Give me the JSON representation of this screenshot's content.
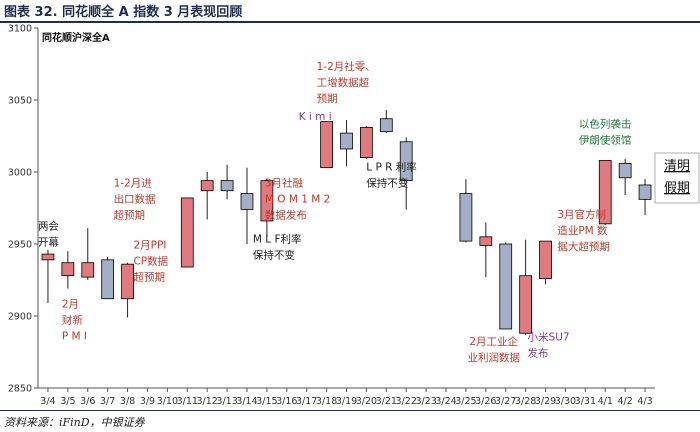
{
  "header": {
    "title": "图表 32. 同花顺全 A 指数 3 月表现回顾"
  },
  "footer": {
    "source": "资料来源：iFinD，中银证券"
  },
  "chart_data": {
    "type": "candlestick",
    "series_label": "同花顺沪深全A",
    "ylim": [
      2850,
      3100
    ],
    "yticks": [
      2850,
      2900,
      2950,
      3000,
      3050,
      3100
    ],
    "categories": [
      "3/4",
      "3/5",
      "3/6",
      "3/7",
      "3/8",
      "3/9",
      "3/10",
      "3/11",
      "3/12",
      "3/13",
      "3/14",
      "3/15",
      "3/16",
      "3/17",
      "3/18",
      "3/19",
      "3/20",
      "3/21",
      "3/22",
      "3/23",
      "3/24",
      "3/25",
      "3/26",
      "3/27",
      "3/28",
      "3/29",
      "3/30",
      "3/31",
      "4/1",
      "4/2",
      "4/3"
    ],
    "candles": [
      {
        "date": "3/4",
        "open": 2943,
        "close": 2939,
        "high": 2946,
        "low": 2909,
        "dir": "up"
      },
      {
        "date": "3/5",
        "open": 2928,
        "close": 2937,
        "high": 2945,
        "low": 2919,
        "dir": "up"
      },
      {
        "date": "3/6",
        "open": 2927,
        "close": 2937,
        "high": 2961,
        "low": 2925,
        "dir": "up"
      },
      {
        "date": "3/7",
        "open": 2912,
        "close": 2939,
        "high": 2941,
        "low": 2912,
        "dir": "down"
      },
      {
        "date": "3/8",
        "open": 2912,
        "close": 2936,
        "high": 2937,
        "low": 2899,
        "dir": "up"
      },
      {
        "date": "3/11",
        "open": 2934,
        "close": 2982,
        "high": 2982,
        "low": 2934,
        "dir": "up"
      },
      {
        "date": "3/12",
        "open": 2987,
        "close": 2994,
        "high": 3000,
        "low": 2967,
        "dir": "up"
      },
      {
        "date": "3/13",
        "open": 2987,
        "close": 2994,
        "high": 3005,
        "low": 2981,
        "dir": "down"
      },
      {
        "date": "3/14",
        "open": 2974,
        "close": 2985,
        "high": 3003,
        "low": 2950,
        "dir": "down"
      },
      {
        "date": "3/15",
        "open": 2966,
        "close": 2994,
        "high": 2995,
        "low": 2955,
        "dir": "up"
      },
      {
        "date": "3/18",
        "open": 3003,
        "close": 3035,
        "high": 3035,
        "low": 3003,
        "dir": "up"
      },
      {
        "date": "3/19",
        "open": 3016,
        "close": 3027,
        "high": 3036,
        "low": 3004,
        "dir": "down"
      },
      {
        "date": "3/20",
        "open": 3010,
        "close": 3031,
        "high": 3032,
        "low": 3009,
        "dir": "up"
      },
      {
        "date": "3/21",
        "open": 3028,
        "close": 3037,
        "high": 3043,
        "low": 3027,
        "dir": "down"
      },
      {
        "date": "3/22",
        "open": 2994,
        "close": 3021,
        "high": 3024,
        "low": 2974,
        "dir": "down"
      },
      {
        "date": "3/25",
        "open": 2952,
        "close": 2985,
        "high": 2995,
        "low": 2951,
        "dir": "down"
      },
      {
        "date": "3/26",
        "open": 2949,
        "close": 2955,
        "high": 2965,
        "low": 2927,
        "dir": "up"
      },
      {
        "date": "3/27",
        "open": 2891,
        "close": 2950,
        "high": 2951,
        "low": 2891,
        "dir": "down"
      },
      {
        "date": "3/28",
        "open": 2888,
        "close": 2928,
        "high": 2953,
        "low": 2887,
        "dir": "up"
      },
      {
        "date": "3/29",
        "open": 2926,
        "close": 2952,
        "high": 2952,
        "low": 2922,
        "dir": "up"
      },
      {
        "date": "4/1",
        "open": 2964,
        "close": 3008,
        "high": 3008,
        "low": 2963,
        "dir": "up"
      },
      {
        "date": "4/2",
        "open": 2996,
        "close": 3006,
        "high": 3009,
        "low": 2984,
        "dir": "down"
      },
      {
        "date": "4/3",
        "open": 2981,
        "close": 2991,
        "high": 2995,
        "low": 2970,
        "dir": "down"
      }
    ],
    "colors": {
      "up": "#e07a7e",
      "down": "#a4afc7",
      "border": "#000000"
    },
    "annotations": [
      {
        "lines": [
          "两会",
          "开幕"
        ],
        "color": "#222222",
        "date": "3/4",
        "y": 2960,
        "align": "start",
        "dx": -10
      },
      {
        "lines": [
          "2月",
          "财新",
          "P M I"
        ],
        "color": "#c0392b",
        "date": "3/5",
        "y": 2906,
        "align": "start",
        "dx": -6
      },
      {
        "lines": [
          "1-2月进",
          "出口数据",
          "超预期"
        ],
        "color": "#c0392b",
        "date": "3/8",
        "y": 2990,
        "align": "start",
        "dx": -14
      },
      {
        "lines": [
          "2月PPI",
          "CP数据",
          "超预期"
        ],
        "color": "#c0392b",
        "date": "3/9",
        "y": 2947,
        "align": "start",
        "dx": -14
      },
      {
        "lines": [
          "3月社融",
          "M O M 1 M 2",
          "数据发布"
        ],
        "color": "#c0392b",
        "date": "3/15",
        "y": 2990,
        "align": "start",
        "dx": -2
      },
      {
        "lines": [
          "M L F利率",
          "保持不变"
        ],
        "color": "#222222",
        "date": "3/15",
        "y": 2951,
        "align": "start",
        "dx": -14
      },
      {
        "lines": [
          "K i m i"
        ],
        "color": "#7d3c98",
        "date": "3/17",
        "y": 3036,
        "align": "start",
        "dx": -8
      },
      {
        "lines": [
          "1-2月社零、",
          "工增数据超",
          "预期"
        ],
        "color": "#c0392b",
        "date": "3/18",
        "y": 3071,
        "align": "start",
        "dx": -10
      },
      {
        "lines": [
          "L P R 利率",
          "保持不变"
        ],
        "color": "#222222",
        "date": "3/21",
        "y": 3001,
        "align": "start",
        "dx": -20
      },
      {
        "lines": [
          "2月工业企",
          "业利润数据"
        ],
        "color": "#c0392b",
        "date": "3/27",
        "y": 2880,
        "align": "middle",
        "dx": -12
      },
      {
        "lines": [
          "小米SU7",
          "发布"
        ],
        "color": "#7d3c98",
        "date": "3/29",
        "y": 2883,
        "align": "start",
        "dx": -18
      },
      {
        "lines": [
          "3月官方制",
          "造业PM 数",
          "据大超预期"
        ],
        "color": "#c0392b",
        "date": "3/31",
        "y": 2968,
        "align": "start",
        "dx": -28
      },
      {
        "lines": [
          "以色列袭击",
          "伊朗使领馆"
        ],
        "color": "#1e7b3a",
        "date": "4/2",
        "y": 3031,
        "align": "middle",
        "dx": -20
      }
    ],
    "legend": {
      "items": [
        "清明",
        "假期"
      ],
      "placement": "right"
    }
  }
}
